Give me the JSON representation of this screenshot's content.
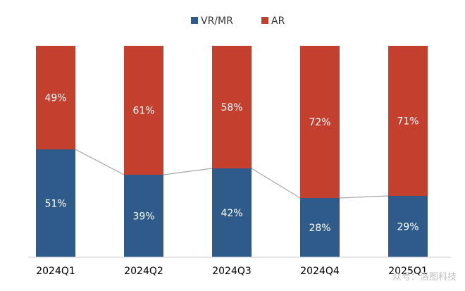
{
  "chart_data": {
    "type": "bar",
    "stacked": true,
    "percent": true,
    "categories": [
      "2024Q1",
      "2024Q2",
      "2024Q3",
      "2024Q4",
      "2025Q1"
    ],
    "series": [
      {
        "name": "VR/MR",
        "color": "#2f5b8a",
        "values": [
          51,
          39,
          42,
          28,
          29
        ],
        "labels": [
          "51%",
          "39%",
          "42%",
          "28%",
          "29%"
        ]
      },
      {
        "name": "AR",
        "color": "#c33f2e",
        "values": [
          49,
          61,
          58,
          72,
          71
        ],
        "labels": [
          "49%",
          "61%",
          "58%",
          "72%",
          "71%"
        ]
      }
    ],
    "ylim": [
      0,
      100
    ],
    "legend": "top-center",
    "grid": false,
    "connector_lines": true
  },
  "watermark": "众号：洛图科技"
}
